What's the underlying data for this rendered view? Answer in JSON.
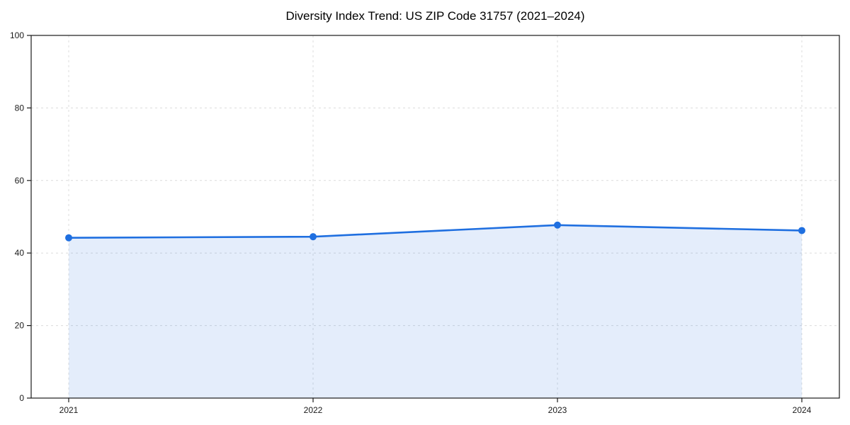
{
  "chart_data": {
    "type": "line",
    "title": "Diversity Index Trend: US ZIP Code 31757 (2021–2024)",
    "categories": [
      "2021",
      "2022",
      "2023",
      "2024"
    ],
    "series": [
      {
        "name": "Diversity Index",
        "values": [
          44.2,
          44.5,
          47.7,
          46.2
        ]
      }
    ],
    "xlabel": "",
    "ylabel": "",
    "ylim": [
      0,
      100
    ],
    "yticks": [
      0,
      20,
      40,
      60,
      80,
      100
    ],
    "grid": true,
    "grid_style": "dashed",
    "legend": "none",
    "colors": {
      "line": "#1f6fe0",
      "marker": "#1f6fe0",
      "fill": "rgba(31, 111, 224, 0.12)",
      "grid": "#dcdcdc",
      "spine": "#1a1a1a",
      "tick_text": "#1a1a1a",
      "background": "#ffffff"
    }
  }
}
